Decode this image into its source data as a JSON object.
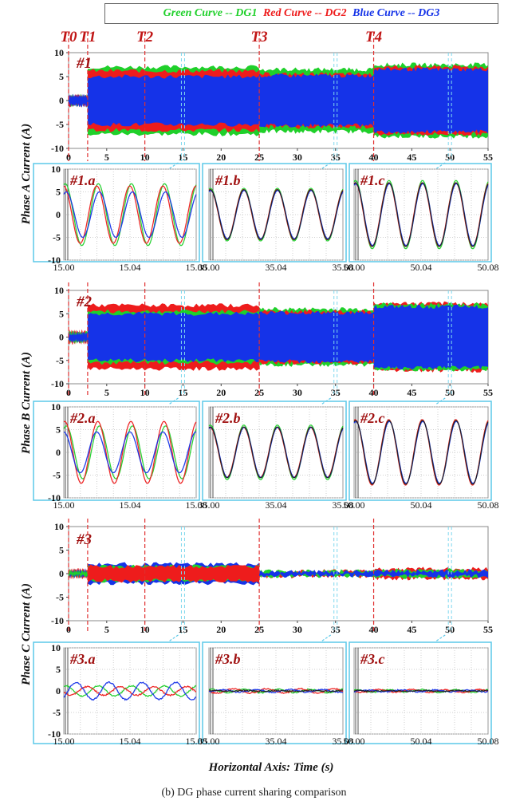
{
  "legend": {
    "green": "Green Curve -- DG1",
    "red": "Red Curve -- DG2",
    "blue": "Blue Curve -- DG3"
  },
  "colors": {
    "green": "#1fd02a",
    "red": "#ee1c1c",
    "blue": "#1533e8",
    "black": "#222222",
    "frame": "#5bc8e8",
    "event": "#e03030"
  },
  "x_label": "Horizontal Axis: Time (s)",
  "caption": "(b) DG phase current sharing comparison",
  "events": [
    {
      "label": "T0",
      "t": 0
    },
    {
      "label": "T1",
      "t": 2.5
    },
    {
      "label": "T2",
      "t": 10
    },
    {
      "label": "T3",
      "t": 25
    },
    {
      "label": "T4",
      "t": 40
    }
  ],
  "zoom_times": [
    15,
    35,
    50
  ],
  "chart_data": [
    {
      "type": "area",
      "panel": "#1",
      "ylabel": "Phase A Current (A)",
      "xlim": [
        0,
        55
      ],
      "ylim": [
        -10,
        10
      ],
      "xticks": [
        0,
        5,
        10,
        15,
        20,
        25,
        30,
        35,
        40,
        45,
        50,
        55
      ],
      "yticks": [
        10,
        5,
        0,
        -5,
        -10
      ],
      "segments": [
        {
          "t0": 0,
          "t1": 2.5,
          "green": 1.0,
          "red": 1.0,
          "blue": 1.0
        },
        {
          "t0": 2.5,
          "t1": 25,
          "green": 7.0,
          "red": 6.2,
          "blue": 5.0
        },
        {
          "t0": 25,
          "t1": 40,
          "green": 6.5,
          "red": 5.5,
          "blue": 5.2
        },
        {
          "t0": 40,
          "t1": 55,
          "green": 7.5,
          "red": 7.0,
          "blue": 6.5
        }
      ]
    },
    {
      "type": "line",
      "panel": "#1.a",
      "xlim": [
        15.0,
        15.08
      ],
      "xticks": [
        "15.00",
        "15.04",
        "15.08"
      ],
      "ylim": [
        -10,
        10
      ],
      "yticks": [
        10,
        5,
        0,
        -5,
        -10
      ],
      "series": [
        {
          "color": "green",
          "amp": 6.8,
          "phase": 0.0
        },
        {
          "color": "red",
          "amp": 6.3,
          "phase": 0.3
        },
        {
          "color": "blue",
          "amp": 5.0,
          "phase": -0.2
        }
      ]
    },
    {
      "type": "line",
      "panel": "#1.b",
      "xlim": [
        35.0,
        35.08
      ],
      "xticks": [
        "35.00",
        "35.04",
        "35.08"
      ],
      "ylim": [
        -10,
        10
      ],
      "yticks": [
        10,
        5,
        0,
        -5,
        -10
      ],
      "series": [
        {
          "color": "green",
          "amp": 5.8,
          "phase": 0.0
        },
        {
          "color": "red",
          "amp": 5.5,
          "phase": 0.05
        },
        {
          "color": "blue",
          "amp": 5.3,
          "phase": -0.05
        },
        {
          "color": "black",
          "amp": 5.5,
          "phase": 0.0
        }
      ]
    },
    {
      "type": "line",
      "panel": "#1.c",
      "xlim": [
        50.0,
        50.08
      ],
      "xticks": [
        "50.00",
        "50.04",
        "50.08"
      ],
      "ylim": [
        -10,
        10
      ],
      "yticks": [
        10,
        5,
        0,
        -5,
        -10
      ],
      "series": [
        {
          "color": "green",
          "amp": 7.5,
          "phase": 0.0
        },
        {
          "color": "red",
          "amp": 7.0,
          "phase": 0.05
        },
        {
          "color": "blue",
          "amp": 6.8,
          "phase": -0.05
        },
        {
          "color": "black",
          "amp": 7.0,
          "phase": 0.0
        }
      ]
    },
    {
      "type": "area",
      "panel": "#2",
      "ylabel": "Phase B Current (A)",
      "xlim": [
        0,
        55
      ],
      "ylim": [
        -10,
        10
      ],
      "xticks": [
        0,
        5,
        10,
        15,
        20,
        25,
        30,
        35,
        40,
        45,
        50,
        55
      ],
      "yticks": [
        10,
        5,
        0,
        -5,
        -10
      ],
      "segments": [
        {
          "t0": 0,
          "t1": 2.5,
          "green": 1.0,
          "red": 1.2,
          "blue": 0.8
        },
        {
          "t0": 2.5,
          "t1": 25,
          "green": 5.5,
          "red": 6.8,
          "blue": 5.0
        },
        {
          "t0": 25,
          "t1": 40,
          "green": 6.0,
          "red": 5.5,
          "blue": 5.2
        },
        {
          "t0": 40,
          "t1": 55,
          "green": 7.0,
          "red": 7.2,
          "blue": 6.5
        }
      ]
    },
    {
      "type": "line",
      "panel": "#2.a",
      "xlim": [
        15.0,
        15.08
      ],
      "xticks": [
        "15.00",
        "15.04",
        "15.08"
      ],
      "ylim": [
        -10,
        10
      ],
      "yticks": [
        10,
        5,
        0,
        -5,
        -10
      ],
      "series": [
        {
          "color": "green",
          "amp": 5.8,
          "phase": -0.2
        },
        {
          "color": "red",
          "amp": 6.8,
          "phase": 0.1
        },
        {
          "color": "blue",
          "amp": 4.5,
          "phase": 0.3
        }
      ]
    },
    {
      "type": "line",
      "panel": "#2.b",
      "xlim": [
        35.0,
        35.08
      ],
      "xticks": [
        "35.00",
        "35.04",
        "35.08"
      ],
      "ylim": [
        -10,
        10
      ],
      "yticks": [
        10,
        5,
        0,
        -5,
        -10
      ],
      "series": [
        {
          "color": "green",
          "amp": 6.0,
          "phase": 0.0
        },
        {
          "color": "red",
          "amp": 5.5,
          "phase": 0.05
        },
        {
          "color": "blue",
          "amp": 5.5,
          "phase": -0.05
        },
        {
          "color": "black",
          "amp": 5.6,
          "phase": 0.0
        }
      ]
    },
    {
      "type": "line",
      "panel": "#2.c",
      "xlim": [
        50.0,
        50.08
      ],
      "xticks": [
        "50.00",
        "50.04",
        "50.08"
      ],
      "ylim": [
        -10,
        10
      ],
      "yticks": [
        10,
        5,
        0,
        -5,
        -10
      ],
      "series": [
        {
          "color": "green",
          "amp": 7.0,
          "phase": 0.0
        },
        {
          "color": "red",
          "amp": 7.2,
          "phase": 0.05
        },
        {
          "color": "blue",
          "amp": 6.8,
          "phase": -0.05
        },
        {
          "color": "black",
          "amp": 7.0,
          "phase": 0.0
        }
      ]
    },
    {
      "type": "area",
      "panel": "#3",
      "ylabel": "Phase C Current (A)",
      "xlim": [
        0,
        55
      ],
      "ylim": [
        -10,
        10
      ],
      "xticks": [
        0,
        5,
        10,
        15,
        20,
        25,
        30,
        35,
        40,
        45,
        50,
        55
      ],
      "yticks": [
        10,
        5,
        0,
        -5,
        -10
      ],
      "segments": [
        {
          "t0": 0,
          "t1": 2.5,
          "green": 0.5,
          "red": 0.8,
          "blue": 0.6
        },
        {
          "t0": 2.5,
          "t1": 25,
          "green": 1.5,
          "red": 1.5,
          "blue": 2.0
        },
        {
          "t0": 25,
          "t1": 40,
          "green": 0.5,
          "red": 0.6,
          "blue": 0.4
        },
        {
          "t0": 40,
          "t1": 55,
          "green": 0.7,
          "red": 1.0,
          "blue": 0.5
        }
      ]
    },
    {
      "type": "line",
      "panel": "#3.a",
      "xlim": [
        15.0,
        15.08
      ],
      "xticks": [
        "15.00",
        "15.04",
        "15.08"
      ],
      "ylim": [
        -10,
        10
      ],
      "yticks": [
        10,
        5,
        0,
        -5,
        -10
      ],
      "series": [
        {
          "color": "green",
          "amp": 1.2,
          "phase": 0.0
        },
        {
          "color": "red",
          "amp": 1.0,
          "phase": 2.1
        },
        {
          "color": "blue",
          "amp": 2.0,
          "phase": 4.2
        }
      ]
    },
    {
      "type": "line",
      "panel": "#3.b",
      "xlim": [
        35.0,
        35.08
      ],
      "xticks": [
        "35.00",
        "35.04",
        "35.08"
      ],
      "ylim": [
        -10,
        10
      ],
      "yticks": [
        10,
        5,
        0,
        -5,
        -10
      ],
      "series": [
        {
          "color": "green",
          "amp": 0.4,
          "phase": 0.0
        },
        {
          "color": "red",
          "amp": 0.5,
          "phase": 2.0
        },
        {
          "color": "blue",
          "amp": 0.3,
          "phase": 4.0
        },
        {
          "color": "black",
          "amp": 0.1,
          "phase": 0.0
        }
      ]
    },
    {
      "type": "line",
      "panel": "#3.c",
      "xlim": [
        50.0,
        50.08
      ],
      "xticks": [
        "50.00",
        "50.04",
        "50.08"
      ],
      "ylim": [
        -10,
        10
      ],
      "yticks": [
        10,
        5,
        0,
        -5,
        -10
      ],
      "series": [
        {
          "color": "green",
          "amp": 0.3,
          "phase": 0.0
        },
        {
          "color": "red",
          "amp": 0.3,
          "phase": 2.0
        },
        {
          "color": "blue",
          "amp": 0.2,
          "phase": 4.0
        },
        {
          "color": "black",
          "amp": 0.1,
          "phase": 0.0
        }
      ]
    }
  ]
}
